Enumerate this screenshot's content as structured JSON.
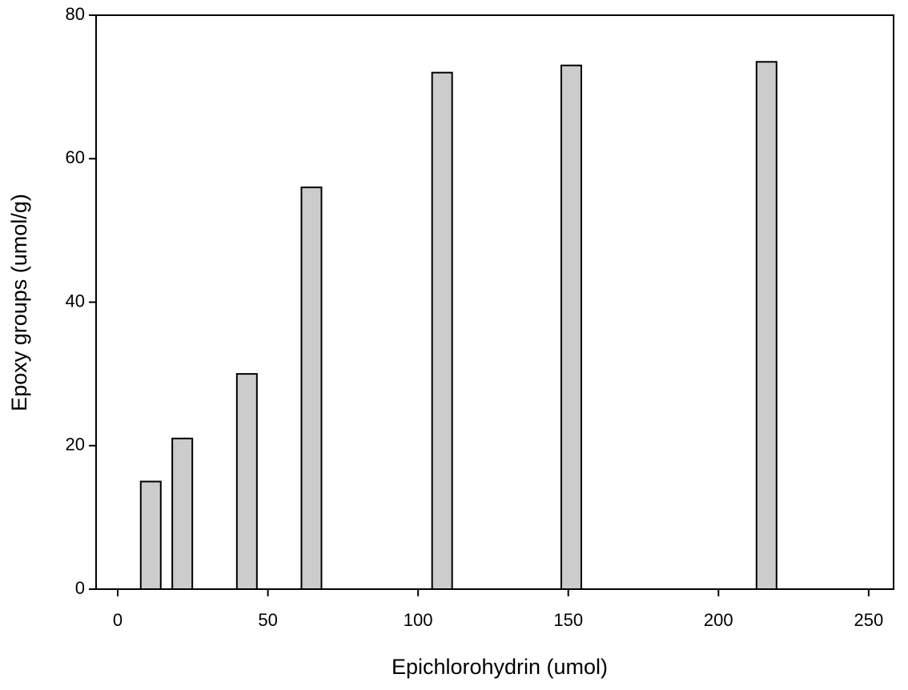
{
  "chart_data": {
    "type": "bar",
    "x_label": "Epichlorohydrin (umol)",
    "y_label": "Epoxy groups (umol/g)",
    "x": [
      11,
      21.5,
      43,
      64.5,
      108,
      151,
      216
    ],
    "values": [
      15,
      21,
      30,
      56,
      72,
      73,
      73.5
    ],
    "color": "#cccccc",
    "xlim": [
      -7.2,
      258.3
    ],
    "xticks": [
      0,
      50,
      100,
      150,
      200,
      250
    ],
    "ylim": [
      0,
      80
    ],
    "yticks": [
      0,
      20,
      40,
      60,
      80
    ],
    "grid": false
  }
}
